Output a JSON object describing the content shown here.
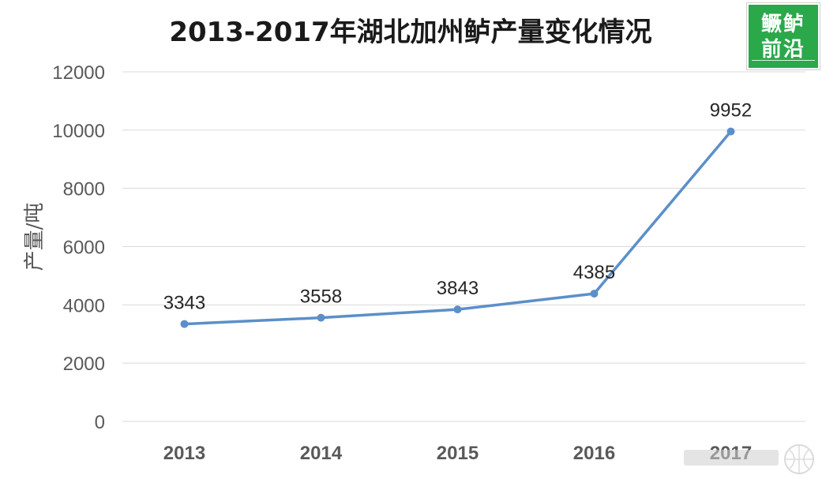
{
  "chart_data": {
    "type": "line",
    "title": "2013-2017年湖北加州鲈产量变化情况",
    "ylabel": "产量/吨",
    "xlabel": "",
    "categories": [
      "2013",
      "2014",
      "2015",
      "2016",
      "2017"
    ],
    "values": [
      3343,
      3558,
      3843,
      4385,
      9952
    ],
    "data_labels": [
      "3343",
      "3558",
      "3843",
      "4385",
      "9952"
    ],
    "ylim": [
      0,
      12000
    ],
    "yticks": [
      "0",
      "2000",
      "4000",
      "6000",
      "8000",
      "10000",
      "12000"
    ],
    "grid": true,
    "legend": "none",
    "line_color": "#5b8fc9"
  },
  "logo": {
    "line1": "鳜鲈",
    "line2": "前沿"
  }
}
